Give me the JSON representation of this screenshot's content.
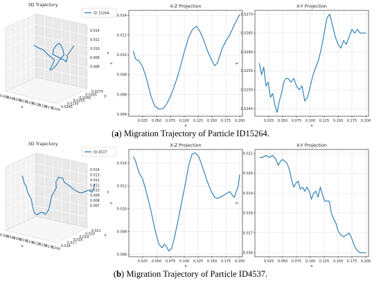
{
  "figure": {
    "captions": [
      {
        "letter": "a",
        "text": "Migration Trajectory of Particle ID15264."
      },
      {
        "letter": "b",
        "text": "Migration Trajectory of Particle ID4537."
      }
    ]
  },
  "colors": {
    "line": "#1f77b4",
    "grid": "#e3e3e3",
    "axis": "#333333"
  },
  "chart_data": [
    {
      "panel": "a",
      "type": "line",
      "title": "3D Trajectory",
      "projection": "3d",
      "legend": "ID 15264",
      "legend_position": "upper-right",
      "xlabel": "x",
      "ylabel": "y",
      "zlabel": "z",
      "xticks": [
        "0.000",
        "0.025",
        "0.050",
        "0.075",
        "0.100",
        "0.125",
        "0.150",
        "0.175",
        "0.200"
      ],
      "yticks": [
        "0.0245",
        "0.0250",
        "0.0255",
        "0.0260",
        "0.0265",
        "0.0270"
      ],
      "zticks": [
        "0.006",
        "0.008",
        "0.010",
        "0.012",
        "0.014"
      ]
    },
    {
      "panel": "a",
      "type": "line",
      "title": "X-Z Projection",
      "xlabel": "x",
      "ylabel": "z",
      "xlim": [
        0.0,
        0.205
      ],
      "ylim": [
        0.0038,
        0.0145
      ],
      "grid": true,
      "xticks": [
        0.025,
        0.05,
        0.075,
        0.1,
        0.125,
        0.15,
        0.175,
        0.2
      ],
      "yticks": [
        0.004,
        0.006,
        0.008,
        0.01,
        0.012,
        0.014
      ],
      "x": [
        0.008,
        0.012,
        0.018,
        0.025,
        0.032,
        0.04,
        0.047,
        0.055,
        0.062,
        0.068,
        0.075,
        0.082,
        0.09,
        0.1,
        0.108,
        0.115,
        0.122,
        0.128,
        0.135,
        0.142,
        0.15,
        0.155,
        0.16,
        0.168,
        0.175,
        0.182,
        0.19,
        0.2
      ],
      "y": [
        0.0104,
        0.0096,
        0.0094,
        0.0088,
        0.0076,
        0.0058,
        0.0048,
        0.0045,
        0.0046,
        0.005,
        0.0058,
        0.0068,
        0.0082,
        0.0103,
        0.0118,
        0.0126,
        0.0129,
        0.0124,
        0.0115,
        0.0104,
        0.0094,
        0.0089,
        0.0092,
        0.0106,
        0.0114,
        0.012,
        0.013,
        0.0141
      ]
    },
    {
      "panel": "a",
      "type": "line",
      "title": "X-Y Projection",
      "xlabel": "x",
      "ylabel": "Y",
      "xlim": [
        0.0,
        0.205
      ],
      "ylim": [
        0.0243,
        0.0271
      ],
      "grid": true,
      "xticks": [
        0.025,
        0.05,
        0.075,
        0.1,
        0.125,
        0.15,
        0.175,
        0.2
      ],
      "yticks": [
        0.0245,
        0.025,
        0.0255,
        0.026,
        0.0265,
        0.027
      ],
      "x": [
        0.008,
        0.012,
        0.016,
        0.02,
        0.024,
        0.028,
        0.032,
        0.036,
        0.04,
        0.044,
        0.048,
        0.052,
        0.056,
        0.06,
        0.065,
        0.07,
        0.075,
        0.08,
        0.085,
        0.09,
        0.095,
        0.1,
        0.105,
        0.11,
        0.115,
        0.12,
        0.125,
        0.13,
        0.135,
        0.14,
        0.145,
        0.15,
        0.155,
        0.16,
        0.165,
        0.17,
        0.175,
        0.18,
        0.185,
        0.19,
        0.195,
        0.2
      ],
      "y": [
        0.0257,
        0.0254,
        0.0256,
        0.0251,
        0.0252,
        0.0248,
        0.0249,
        0.0246,
        0.0244,
        0.0247,
        0.0249,
        0.0252,
        0.0253,
        0.0253,
        0.0252,
        0.0253,
        0.0251,
        0.025,
        0.0251,
        0.0247,
        0.0248,
        0.0251,
        0.0254,
        0.0256,
        0.0258,
        0.0261,
        0.0265,
        0.0269,
        0.027,
        0.0267,
        0.0264,
        0.0262,
        0.0261,
        0.0263,
        0.0262,
        0.0264,
        0.0266,
        0.0265,
        0.0266,
        0.0265,
        0.0265,
        0.0265
      ]
    },
    {
      "panel": "b",
      "type": "line",
      "title": "3D Trajectory",
      "projection": "3d",
      "legend": "ID 4537",
      "legend_position": "upper-right",
      "xlabel": "x",
      "ylabel": "y",
      "zlabel": "z",
      "xticks": [
        "0.000",
        "0.025",
        "0.050",
        "0.075",
        "0.100",
        "0.125",
        "0.150",
        "0.175",
        "0.200"
      ],
      "yticks": [
        "0.016",
        "0.017",
        "0.018",
        "0.019",
        "0.020",
        "0.021"
      ],
      "zticks": [
        "0.007",
        "0.008",
        "0.009",
        "0.010",
        "0.011",
        "0.012",
        "0.013",
        "0.014"
      ]
    },
    {
      "panel": "b",
      "type": "line",
      "title": "X-Z Projection",
      "xlabel": "x",
      "ylabel": "z",
      "xlim": [
        0.0,
        0.205
      ],
      "ylim": [
        0.0058,
        0.0152
      ],
      "grid": true,
      "xticks": [
        0.025,
        0.05,
        0.075,
        0.1,
        0.125,
        0.15,
        0.175,
        0.2
      ],
      "yticks": [
        0.006,
        0.008,
        0.01,
        0.012,
        0.014
      ],
      "x": [
        0.008,
        0.012,
        0.018,
        0.025,
        0.032,
        0.04,
        0.047,
        0.054,
        0.06,
        0.064,
        0.068,
        0.072,
        0.077,
        0.082,
        0.088,
        0.095,
        0.102,
        0.108,
        0.114,
        0.12,
        0.126,
        0.132,
        0.14,
        0.148,
        0.155,
        0.16,
        0.168,
        0.175,
        0.182,
        0.19,
        0.197,
        0.2
      ],
      "y": [
        0.0146,
        0.0142,
        0.0132,
        0.0126,
        0.0114,
        0.0098,
        0.0082,
        0.0069,
        0.0066,
        0.0069,
        0.0067,
        0.0063,
        0.0065,
        0.0074,
        0.0088,
        0.0105,
        0.0122,
        0.0138,
        0.0148,
        0.0149,
        0.0146,
        0.0138,
        0.0126,
        0.0116,
        0.011,
        0.0109,
        0.0111,
        0.0113,
        0.0115,
        0.011,
        0.0119,
        0.013
      ]
    },
    {
      "panel": "b",
      "type": "line",
      "title": "X-Y Projection",
      "xlabel": "x",
      "ylabel": "Y",
      "xlim": [
        0.0,
        0.205
      ],
      "ylim": [
        0.0158,
        0.0212
      ],
      "grid": true,
      "xticks": [
        0.025,
        0.05,
        0.075,
        0.1,
        0.125,
        0.15,
        0.175,
        0.2
      ],
      "yticks": [
        0.016,
        0.017,
        0.018,
        0.019,
        0.02,
        0.021
      ],
      "x": [
        0.008,
        0.014,
        0.02,
        0.026,
        0.032,
        0.038,
        0.042,
        0.046,
        0.05,
        0.054,
        0.058,
        0.062,
        0.066,
        0.07,
        0.074,
        0.078,
        0.082,
        0.086,
        0.09,
        0.094,
        0.098,
        0.102,
        0.106,
        0.11,
        0.114,
        0.118,
        0.122,
        0.126,
        0.13,
        0.134,
        0.138,
        0.142,
        0.146,
        0.15,
        0.155,
        0.16,
        0.165,
        0.17,
        0.175,
        0.18,
        0.185,
        0.19,
        0.195,
        0.2
      ],
      "y": [
        0.0208,
        0.0208,
        0.0209,
        0.0208,
        0.0209,
        0.0207,
        0.0204,
        0.0206,
        0.0207,
        0.0206,
        0.0205,
        0.0202,
        0.0197,
        0.0193,
        0.0195,
        0.0196,
        0.0192,
        0.0193,
        0.0191,
        0.0193,
        0.0191,
        0.0187,
        0.019,
        0.0191,
        0.0188,
        0.0193,
        0.0189,
        0.0186,
        0.0186,
        0.0186,
        0.018,
        0.0177,
        0.0175,
        0.0171,
        0.0169,
        0.0168,
        0.0169,
        0.017,
        0.0167,
        0.0163,
        0.0161,
        0.016,
        0.016,
        0.016
      ]
    }
  ]
}
